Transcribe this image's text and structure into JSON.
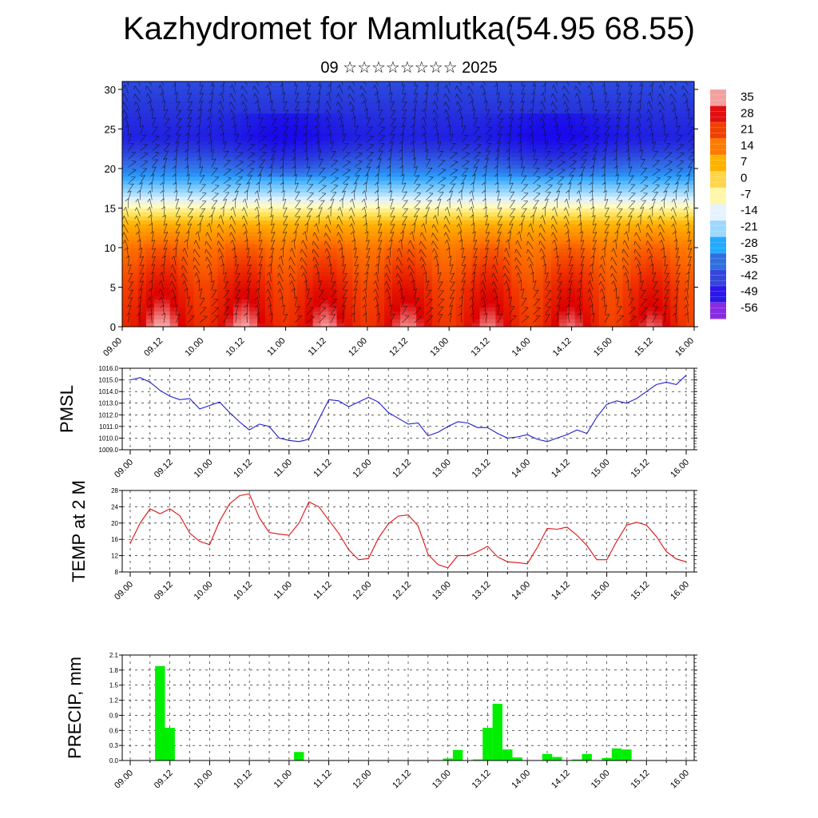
{
  "title": "Kazhydromet for Mamlutka(54.95 68.55)",
  "subtitle": "09 ☆☆☆☆☆☆☆☆ 2025",
  "chart_data": [
    {
      "type": "heatmap",
      "x_tick_labels": [
        "09.00",
        "09.12",
        "10.00",
        "10.12",
        "11.00",
        "11.12",
        "12.00",
        "12.12",
        "13.00",
        "13.12",
        "14.00",
        "14.12",
        "15.00",
        "15.12",
        "16.00"
      ],
      "y_ticks": [
        0,
        5,
        10,
        15,
        20,
        25,
        30
      ],
      "ylim": [
        0,
        31
      ],
      "colorbar_labels": [
        "35",
        "28",
        "21",
        "14",
        "7",
        "0",
        "-7",
        "-14",
        "-21",
        "-28",
        "-35",
        "-42",
        "-49",
        "-56"
      ],
      "colorbar_colors": [
        "#f4a0a0",
        "#e11010",
        "#f04000",
        "#ff7a00",
        "#ffb300",
        "#ffd54a",
        "#fff7a8",
        "#e6f3ff",
        "#9fd8ff",
        "#22aaff",
        "#2f6fe0",
        "#3646dc",
        "#2a17e8",
        "#8a2be2"
      ],
      "profile": {
        "level": [
          0,
          5,
          10,
          13,
          15,
          17,
          19,
          20,
          22,
          24,
          26,
          28,
          31
        ],
        "value": [
          33,
          28,
          20,
          10,
          -4,
          -20,
          -30,
          -38,
          -46,
          -52,
          -50,
          -48,
          -45
        ]
      }
    },
    {
      "type": "line",
      "ylabel": "PMSL",
      "ylim": [
        1009.0,
        1016.0
      ],
      "yticks": [
        "1016.0",
        "1015.0",
        "1014.0",
        "1013.0",
        "1012.0",
        "1011.0",
        "1010.0",
        "1009.0"
      ],
      "x_tick_labels": [
        "09.00",
        "09.12",
        "10.00",
        "10.12",
        "11.00",
        "11.12",
        "12.00",
        "12.12",
        "13.00",
        "13.12",
        "14.00",
        "14.12",
        "15.00",
        "15.12",
        "16.00"
      ],
      "color": "#1f1fcf",
      "values": [
        1015.0,
        1015.2,
        1014.8,
        1014.1,
        1013.6,
        1013.3,
        1013.4,
        1012.5,
        1012.8,
        1013.1,
        1012.2,
        1011.4,
        1010.7,
        1011.2,
        1011.0,
        1010.0,
        1009.8,
        1009.7,
        1009.9,
        1011.6,
        1013.3,
        1013.2,
        1012.7,
        1013.1,
        1013.5,
        1013.1,
        1012.2,
        1011.7,
        1011.2,
        1011.3,
        1010.2,
        1010.5,
        1011.0,
        1011.4,
        1011.3,
        1010.9,
        1010.9,
        1010.4,
        1010.0,
        1010.1,
        1010.3,
        1009.9,
        1009.7,
        1010.0,
        1010.3,
        1010.7,
        1010.4,
        1011.8,
        1012.9,
        1013.2,
        1013.0,
        1013.4,
        1014.0,
        1014.6,
        1014.8,
        1014.6,
        1015.4
      ]
    },
    {
      "type": "line",
      "ylabel": "TEMP at 2 M",
      "ylim": [
        8,
        28
      ],
      "yticks": [
        "28",
        "24",
        "20",
        "16",
        "12",
        "8"
      ],
      "x_tick_labels": [
        "09.00",
        "09.12",
        "10.00",
        "10.12",
        "11.00",
        "11.12",
        "12.00",
        "12.12",
        "13.00",
        "13.12",
        "14.00",
        "14.12",
        "15.00",
        "15.12",
        "16.00"
      ],
      "color": "#e01010",
      "values": [
        15.0,
        20.0,
        23.5,
        22.3,
        23.5,
        21.8,
        17.5,
        15.5,
        14.7,
        20.5,
        24.7,
        26.7,
        27.2,
        21.3,
        17.7,
        17.3,
        17.0,
        20.0,
        25.2,
        24.0,
        20.7,
        17.5,
        13.5,
        11.0,
        11.3,
        16.3,
        19.8,
        21.7,
        22.0,
        19.3,
        12.3,
        9.8,
        9.0,
        12.0,
        12.0,
        13.0,
        14.3,
        11.7,
        10.5,
        10.3,
        10.0,
        14.0,
        18.7,
        18.5,
        19.0,
        17.0,
        14.5,
        11.0,
        11.0,
        15.5,
        19.5,
        20.2,
        19.5,
        16.7,
        13.0,
        11.2,
        10.5
      ]
    },
    {
      "type": "bar",
      "ylabel": "PRECIP, mm",
      "ylim": [
        0,
        2.1
      ],
      "yticks": [
        "2.1",
        "1.8",
        "1.5",
        "1.2",
        "0.9",
        "0.6",
        "0.3",
        "0.0"
      ],
      "x_tick_labels": [
        "09.00",
        "09.12",
        "10.00",
        "10.12",
        "11.00",
        "11.12",
        "12.00",
        "12.12",
        "13.00",
        "13.12",
        "14.00",
        "14.12",
        "15.00",
        "15.12",
        "16.00"
      ],
      "color": "#00ee00",
      "values": [
        0,
        0,
        0,
        1.88,
        0.65,
        0,
        0,
        0,
        0,
        0,
        0,
        0,
        0,
        0.01,
        0,
        0,
        0,
        0.17,
        0,
        0,
        0,
        0,
        0,
        0,
        0,
        0,
        0,
        0,
        0,
        0,
        0,
        0,
        0.04,
        0.21,
        0,
        0.02,
        0.65,
        1.13,
        0.22,
        0.06,
        0,
        0,
        0.13,
        0.07,
        0,
        0.02,
        0.13,
        0,
        0.05,
        0.24,
        0.22,
        0,
        0,
        0,
        0,
        0,
        0
      ]
    }
  ]
}
